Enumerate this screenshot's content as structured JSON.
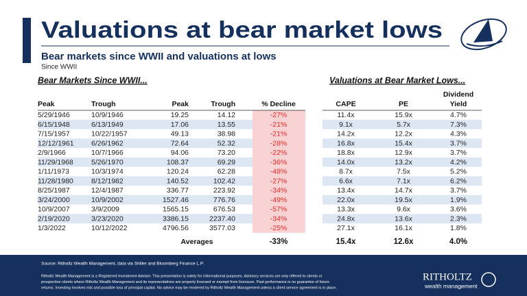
{
  "header": {
    "title": "Valuations at bear market lows",
    "subtitle": "Bear markets since WWII and valuations at lows",
    "note": "Since WWII"
  },
  "left_title": "Bear Markets Since WWII...",
  "right_title": "Valuations at Bear Market Lows...",
  "table": {
    "columns": [
      "Peak",
      "Trough",
      "Peak",
      "Trough",
      "% Decline",
      "CAPE",
      "PE",
      [
        "Dividend",
        "Yield"
      ]
    ],
    "rows": [
      [
        "5/29/1946",
        "10/9/1946",
        "19.25",
        "14.12",
        "-27%",
        "11.4x",
        "15.9x",
        "4.7%"
      ],
      [
        "6/15/1948",
        "6/13/1949",
        "17.06",
        "13.55",
        "-21%",
        "9.1x",
        "5.7x",
        "7.3%"
      ],
      [
        "7/15/1957",
        "10/22/1957",
        "49.13",
        "38.98",
        "-21%",
        "14.2x",
        "12.2x",
        "4.3%"
      ],
      [
        "12/12/1961",
        "6/26/1962",
        "72.64",
        "52.32",
        "-28%",
        "16.8x",
        "15.4x",
        "3.7%"
      ],
      [
        "2/9/1966",
        "10/7/1966",
        "94.06",
        "73.20",
        "-22%",
        "18.8x",
        "12.9x",
        "3.7%"
      ],
      [
        "11/29/1968",
        "5/26/1970",
        "108.37",
        "69.29",
        "-36%",
        "14.0x",
        "13.2x",
        "4.2%"
      ],
      [
        "1/11/1973",
        "10/3/1974",
        "120.24",
        "62.28",
        "-48%",
        "8.7x",
        "7.5x",
        "5.2%"
      ],
      [
        "11/28/1980",
        "8/12/1982",
        "140.52",
        "102.42",
        "-27%",
        "6.6x",
        "7.1x",
        "6.2%"
      ],
      [
        "8/25/1987",
        "12/4/1987",
        "336.77",
        "223.92",
        "-34%",
        "13.4x",
        "14.7x",
        "3.7%"
      ],
      [
        "3/24/2000",
        "10/9/2002",
        "1527.46",
        "776.76",
        "-49%",
        "22.0x",
        "19.5x",
        "1.9%"
      ],
      [
        "10/9/2007",
        "3/9/2009",
        "1565.15",
        "676.53",
        "-57%",
        "13.3x",
        "9.6x",
        "3.6%"
      ],
      [
        "2/19/2020",
        "3/23/2020",
        "3386.15",
        "2237.40",
        "-34%",
        "24.8x",
        "13.6x",
        "2.3%"
      ],
      [
        "1/3/2022",
        "10/12/2022",
        "4796.56",
        "3577.03",
        "-25%",
        "27.1x",
        "16.1x",
        "1.8%"
      ]
    ],
    "averages": {
      "label": "Averages",
      "decline": "-33%",
      "cape": "15.4x",
      "pe": "12.6x",
      "yield": "4.0%"
    }
  },
  "footer": {
    "source": "Source: Ritholtz Wealth Management, data via Shiller and Bloomberg Finance L.P.",
    "disclaimer": [
      "Ritholtz Wealth Management is a Registered Investment Adviser. This presentation is solely for informational purposes. Advisory services are only offered to clients or",
      "prospective clients where Ritholtz Wealth Management and its representatives are properly licensed or exempt from licensure. Past performance is no guarantee of future",
      "returns. Investing involves risk and possible loss of principal capital. No advice may be rendered by Ritholtz Wealth Management unless a client service agreement is in place."
    ],
    "logo_name": "RITHOLTZ",
    "logo_tagline": "wealth management"
  }
}
